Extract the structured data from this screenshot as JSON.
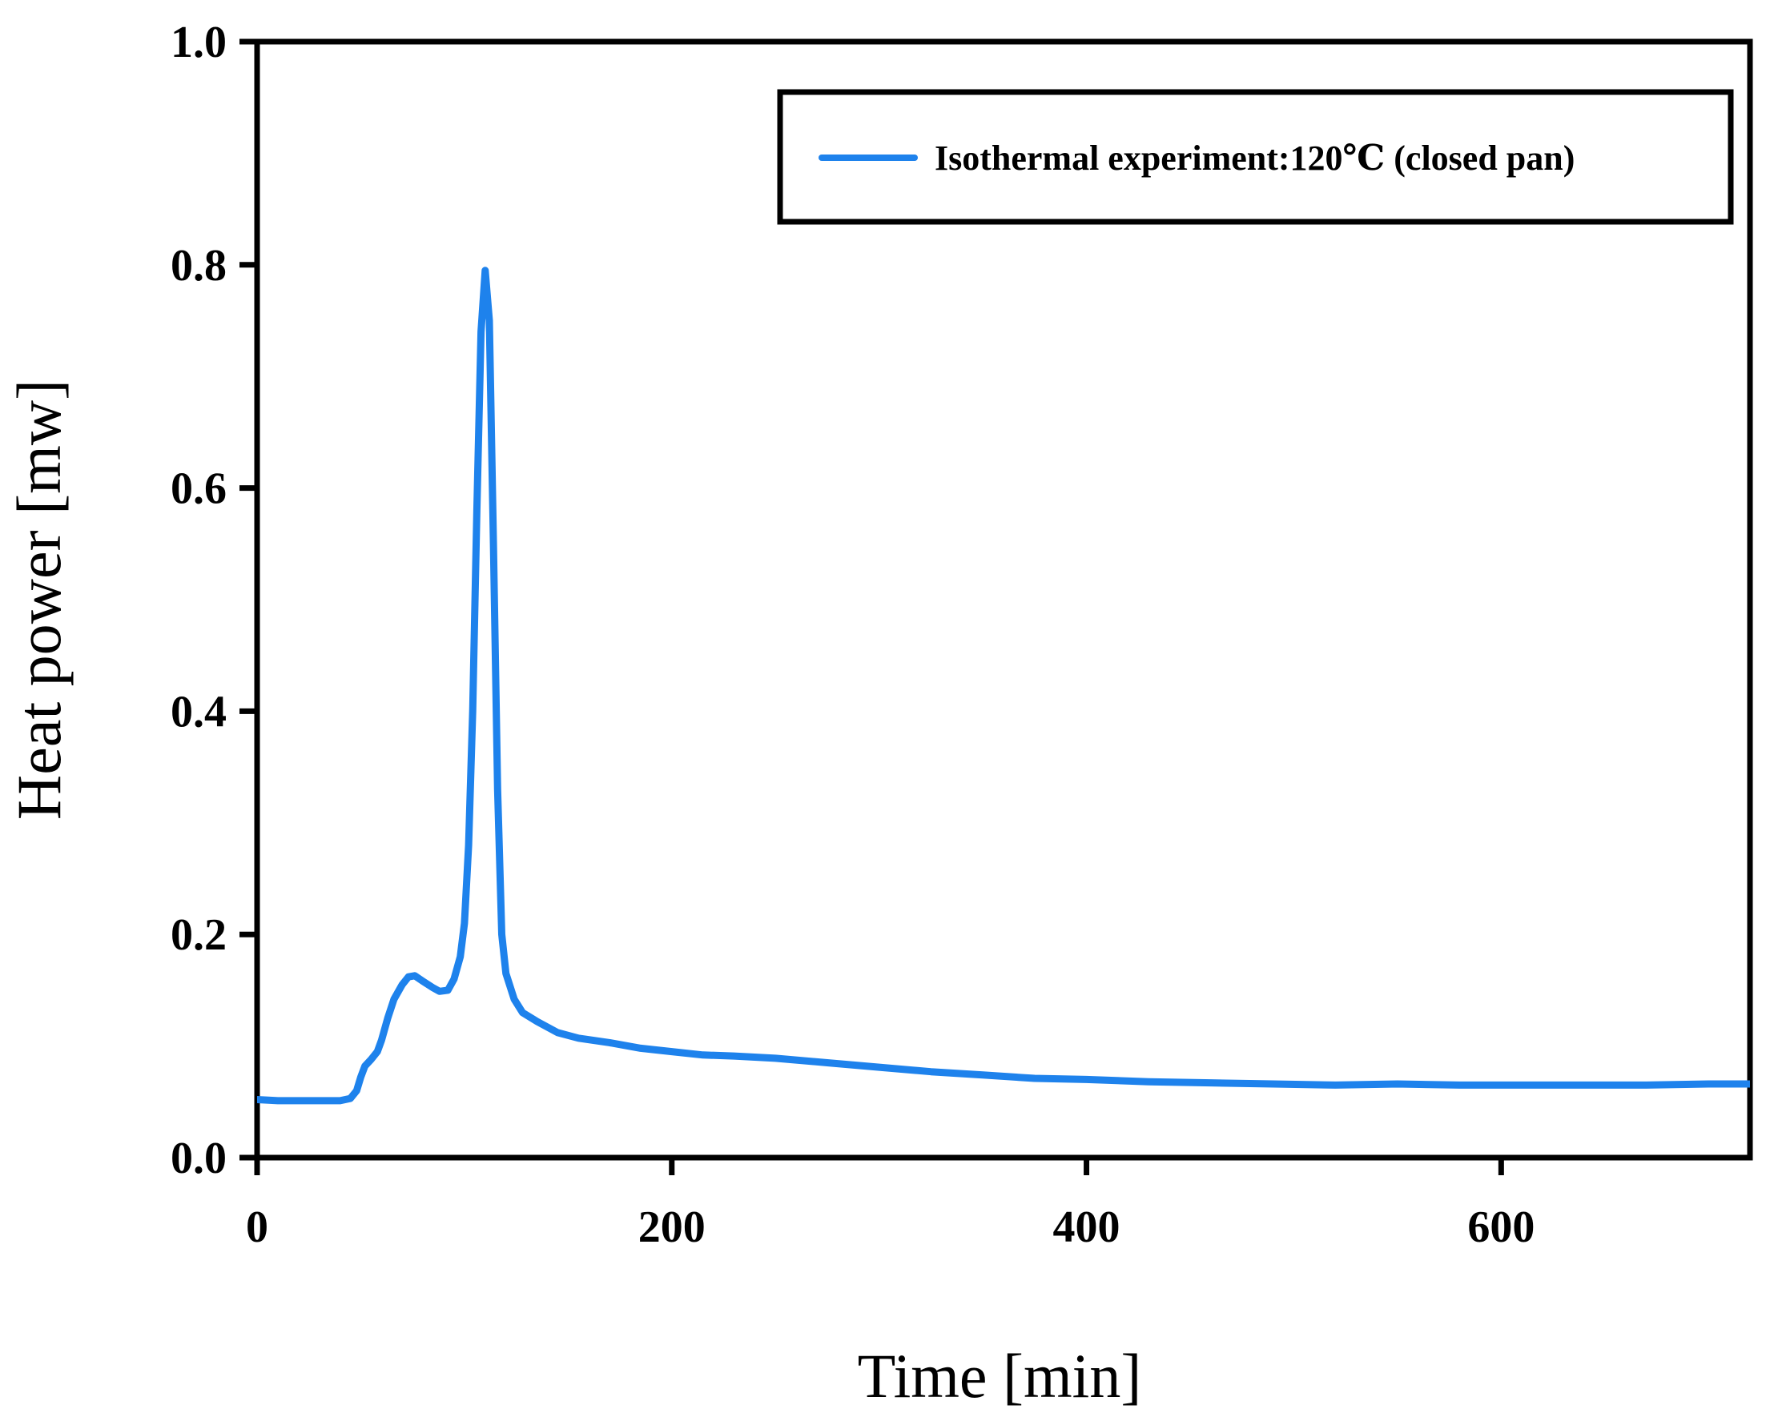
{
  "chart_data": {
    "type": "line",
    "title": "",
    "xlabel": "Time [min]",
    "ylabel": "Heat power [mw]",
    "xlim": [
      0,
      720
    ],
    "ylim": [
      0,
      1.0
    ],
    "xticks": [
      0,
      200,
      400,
      600
    ],
    "xtick_labels": [
      "0",
      "200",
      "400",
      "600"
    ],
    "yticks": [
      0,
      0.2,
      0.4,
      0.6,
      0.8,
      1.0
    ],
    "ytick_labels": [
      "0.0",
      "0.2",
      "0.4",
      "0.6",
      "0.8",
      "1.0"
    ],
    "grid": false,
    "legend_position": "top-right",
    "series": [
      {
        "name": "Isothermal experiment:120℃  (closed pan)",
        "color": "#1e82ec",
        "x": [
          0,
          10,
          20,
          30,
          40,
          45,
          48,
          50,
          52,
          55,
          58,
          60,
          63,
          66,
          70,
          73,
          76,
          80,
          85,
          88,
          92,
          95,
          98,
          100,
          102,
          104,
          106,
          108,
          110,
          112,
          114,
          116,
          118,
          120,
          124,
          128,
          135,
          145,
          155,
          170,
          185,
          200,
          215,
          230,
          250,
          275,
          300,
          325,
          350,
          375,
          400,
          430,
          460,
          490,
          520,
          550,
          580,
          610,
          640,
          670,
          700,
          720
        ],
        "y": [
          0.052,
          0.051,
          0.051,
          0.051,
          0.051,
          0.053,
          0.06,
          0.072,
          0.082,
          0.088,
          0.095,
          0.105,
          0.125,
          0.142,
          0.155,
          0.162,
          0.163,
          0.158,
          0.152,
          0.149,
          0.15,
          0.16,
          0.18,
          0.21,
          0.28,
          0.4,
          0.58,
          0.74,
          0.795,
          0.75,
          0.55,
          0.33,
          0.2,
          0.165,
          0.142,
          0.13,
          0.122,
          0.112,
          0.107,
          0.103,
          0.098,
          0.095,
          0.092,
          0.091,
          0.089,
          0.085,
          0.081,
          0.077,
          0.074,
          0.071,
          0.07,
          0.068,
          0.067,
          0.066,
          0.065,
          0.066,
          0.065,
          0.065,
          0.065,
          0.065,
          0.066,
          0.066
        ]
      }
    ]
  }
}
